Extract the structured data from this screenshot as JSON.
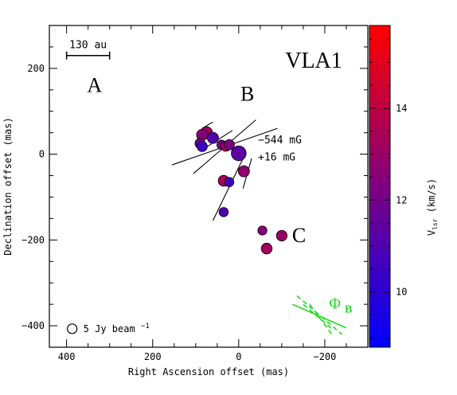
{
  "chart_data": {
    "type": "scatter",
    "title": "VLA1",
    "xlabel": "Right Ascension offset (mas)",
    "ylabel": "Declination offset (mas)",
    "xlim": [
      440,
      -300
    ],
    "ylim": [
      -450,
      300
    ],
    "x_ticks": [
      400,
      200,
      0,
      -200
    ],
    "y_ticks": [
      200,
      0,
      -200,
      -400
    ],
    "colorbar": {
      "label": "V_lsr (km/s)",
      "label_main": "V",
      "label_sub": "lsr",
      "label_rest": " (km/s)",
      "range": [
        8.8,
        15.8
      ],
      "ticks": [
        10,
        12,
        14
      ],
      "low_color": "#0000ff",
      "mid_color": "#7f007f",
      "high_color": "#ff0000"
    },
    "region_labels": [
      {
        "text": "A",
        "x": 335,
        "y": 145
      },
      {
        "text": "B",
        "x": -20,
        "y": 125
      },
      {
        "text": "C",
        "x": -140,
        "y": -205
      }
    ],
    "field_annotations": [
      {
        "text": "−544 mG",
        "x": -45,
        "y": 25
      },
      {
        "text": "+16 mG",
        "x": -45,
        "y": -15
      }
    ],
    "scale_bar": {
      "label": "130 au",
      "x_from": 400,
      "x_to": 300,
      "y": 230
    },
    "beam_legend": {
      "text": "5 Jy beam",
      "exponent": "−1",
      "x": 387,
      "y": -407
    },
    "phi_annotation": {
      "symbol": "Φ",
      "subscript": "B",
      "color": "#22dd22",
      "x": -210,
      "y": -360
    },
    "points": [
      {
        "x": 75,
        "y": 50,
        "v": 13.2,
        "flux": 2.5
      },
      {
        "x": 85,
        "y": 45,
        "v": 12.5,
        "flux": 1.8
      },
      {
        "x": 60,
        "y": 38,
        "v": 11.0,
        "flux": 1.8
      },
      {
        "x": 90,
        "y": 25,
        "v": 12.0,
        "flux": 1.2
      },
      {
        "x": 85,
        "y": 18,
        "v": 10.5,
        "flux": 1.3
      },
      {
        "x": 40,
        "y": 22,
        "v": 12.0,
        "flux": 0.8
      },
      {
        "x": 30,
        "y": 18,
        "v": 13.5,
        "flux": 1.0
      },
      {
        "x": 22,
        "y": 22,
        "v": 12.2,
        "flux": 1.3
      },
      {
        "x": 0,
        "y": 2,
        "v": 11.3,
        "flux": 5.0
      },
      {
        "x": -12,
        "y": -40,
        "v": 12.8,
        "flux": 1.8
      },
      {
        "x": 35,
        "y": -62,
        "v": 13.5,
        "flux": 1.6
      },
      {
        "x": 22,
        "y": -65,
        "v": 10.5,
        "flux": 0.8
      },
      {
        "x": 35,
        "y": -135,
        "v": 11.0,
        "flux": 0.8
      },
      {
        "x": -55,
        "y": -178,
        "v": 12.5,
        "flux": 0.7
      },
      {
        "x": -100,
        "y": -190,
        "v": 13.0,
        "flux": 1.5
      },
      {
        "x": -65,
        "y": -220,
        "v": 13.2,
        "flux": 1.6
      }
    ],
    "field_vectors": [
      {
        "x1": 155,
        "y1": -25,
        "x2": -90,
        "y2": 60
      },
      {
        "x1": 105,
        "y1": -45,
        "x2": -40,
        "y2": 80
      },
      {
        "x1": 85,
        "y1": 10,
        "x2": 15,
        "y2": 55
      },
      {
        "x1": 85,
        "y1": 60,
        "x2": 60,
        "y2": 75
      },
      {
        "x1": 60,
        "y1": -155,
        "x2": -10,
        "y2": -10
      },
      {
        "x1": -10,
        "y1": -80,
        "x2": -30,
        "y2": -10
      }
    ],
    "phi_lines": [
      {
        "x1": -135,
        "y1": -330,
        "x2": -240,
        "y2": -420,
        "style": "dashed"
      },
      {
        "x1": -150,
        "y1": -350,
        "x2": -220,
        "y2": -410,
        "style": "dashed"
      },
      {
        "x1": -165,
        "y1": -350,
        "x2": -220,
        "y2": -425,
        "style": "dashed"
      },
      {
        "x1": -125,
        "y1": -350,
        "x2": -250,
        "y2": -405,
        "style": "solid"
      }
    ]
  }
}
